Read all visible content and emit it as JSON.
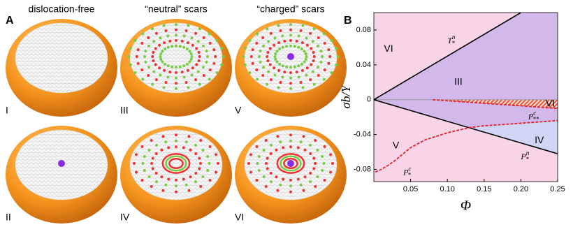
{
  "panel_a": {
    "label": "A",
    "column_titles": [
      "dislocation-free",
      "“neutral” scars",
      "“charged” scars"
    ],
    "images": [
      {
        "label": "I"
      },
      {
        "label": "III"
      },
      {
        "label": "V"
      },
      {
        "label": "II"
      },
      {
        "label": "IV"
      },
      {
        "label": "VI"
      }
    ]
  },
  "chart_data": {
    "type": "line",
    "panel_label": "B",
    "xlabel": "Φ",
    "ylabel": "σb/Y",
    "xlim": [
      0,
      0.25
    ],
    "ylim": [
      -0.094,
      0.1
    ],
    "xticks": [
      0.05,
      {
        "value": 0.1,
        "label": "0.10"
      },
      0.15,
      {
        "value": 0.2,
        "label": "0.20"
      },
      0.25
    ],
    "yticks": [
      -0.08,
      -0.04,
      0,
      0.04,
      0.08
    ],
    "series": [
      {
        "label": {
          "base": "T",
          "sub": "*",
          "sup": "n"
        },
        "color": "#000000",
        "style": "solid",
        "x": [
          0,
          0.2
        ],
        "values": [
          0,
          0.1
        ]
      },
      {
        "label": {
          "base": "P",
          "sub": "*",
          "sup": "n"
        },
        "color": "#000000",
        "style": "solid",
        "x": [
          0,
          0.25
        ],
        "values": [
          0,
          -0.062
        ]
      },
      {
        "label": {
          "base": "P",
          "sub": "*",
          "sup": "c"
        },
        "color": "#e0202a",
        "style": "dashed",
        "x": [
          0.002,
          0.01,
          0.02,
          0.03,
          0.04,
          0.05,
          0.07,
          0.1,
          0.13,
          0.15,
          0.2,
          0.25
        ],
        "values": [
          -0.083,
          -0.08,
          -0.075,
          -0.069,
          -0.062,
          -0.055,
          -0.046,
          -0.038,
          -0.032,
          -0.03,
          -0.027,
          -0.024
        ]
      },
      {
        "label": {
          "base": "P",
          "sub": "**",
          "sup": "c"
        },
        "color": "#e0202a",
        "style": "dashed",
        "x": [
          0.08,
          0.25
        ],
        "values": [
          0,
          -0.01
        ]
      }
    ],
    "regions": [
      {
        "label": "VI"
      },
      {
        "label": "III"
      },
      {
        "label": "VI"
      },
      {
        "label": "V"
      },
      {
        "label": "IV"
      }
    ],
    "colors": {
      "background": "#f9d4e6",
      "purple": "#d3b8ec",
      "blue": "#d2d6f6"
    }
  }
}
